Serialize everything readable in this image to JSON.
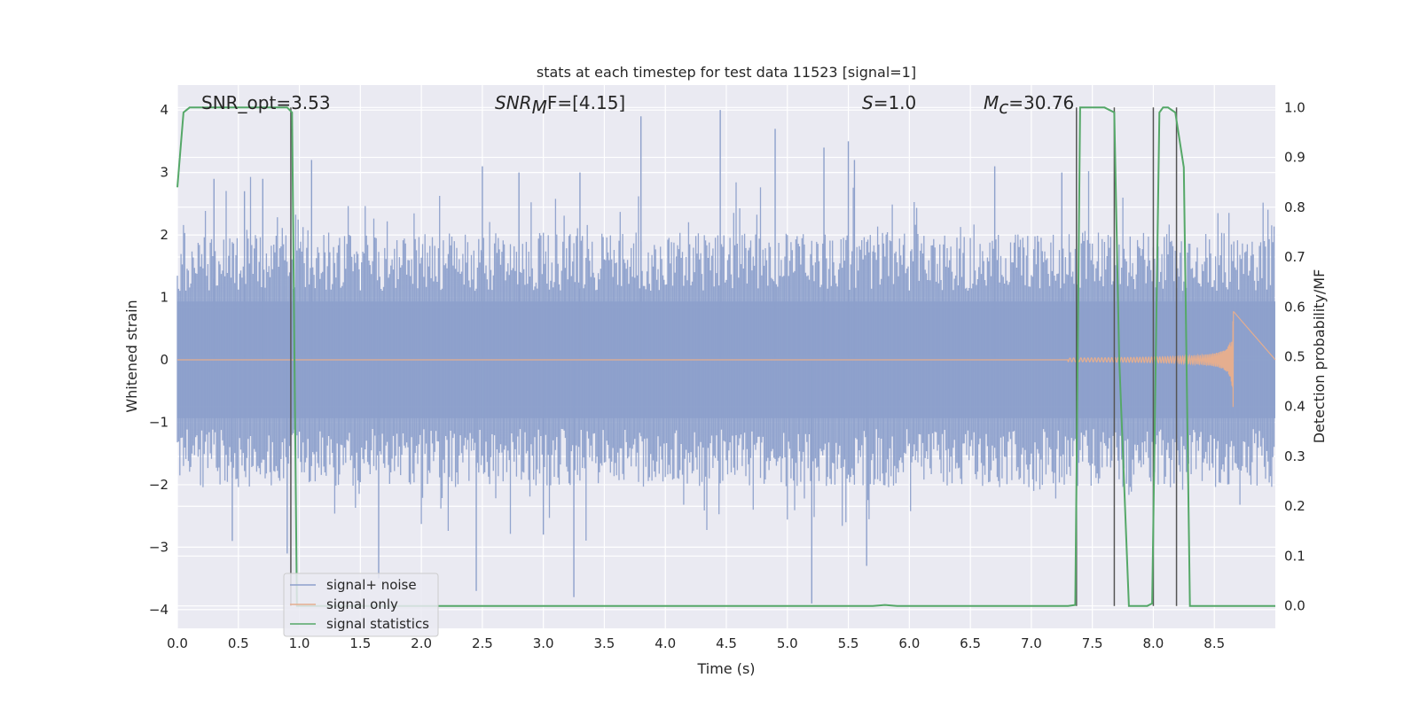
{
  "chart_data": {
    "type": "line",
    "title": "stats at each timestep for test data 11523 [signal=1]",
    "xlabel": "Time (s)",
    "ylabel": "Whitened strain",
    "y2label": "Detection probability/MF",
    "xlim": [
      0.0,
      9.0
    ],
    "ylim": [
      -4.3,
      4.4
    ],
    "y2lim": [
      -0.045,
      1.045
    ],
    "x_ticks": [
      "0.0",
      "0.5",
      "1.0",
      "1.5",
      "2.0",
      "2.5",
      "3.0",
      "3.5",
      "4.0",
      "4.5",
      "5.0",
      "5.5",
      "6.0",
      "6.5",
      "7.0",
      "7.5",
      "8.0",
      "8.5"
    ],
    "y_ticks": [
      "4",
      "3",
      "2",
      "1",
      "0",
      "−1",
      "−2",
      "−3",
      "−4"
    ],
    "y2_ticks": [
      "1.0",
      "0.9",
      "0.8",
      "0.7",
      "0.6",
      "0.5",
      "0.4",
      "0.3",
      "0.2",
      "0.1",
      "0.0"
    ],
    "grid": true,
    "legend_position": "lower-left",
    "annotations": {
      "snr_opt": "SNR_opt=3.53",
      "snr_mf_sym": "SNR",
      "snr_mf_sub": "M",
      "snr_mf_rest": "F=[4.15]",
      "s_sym": "S",
      "s_rest": "=1.0",
      "mc_sym": "M",
      "mc_sub": "c",
      "mc_rest": "=30.76"
    },
    "series": [
      {
        "name": "signal+ noise",
        "color": "#8da0cb",
        "kind": "noise-band",
        "x_range": [
          0.0,
          9.0
        ],
        "typical_abs_max": 1.7,
        "peaks": [
          [
            0.3,
            2.9
          ],
          [
            0.55,
            2.7
          ],
          [
            0.7,
            2.9
          ],
          [
            1.1,
            3.2
          ],
          [
            2.5,
            3.1
          ],
          [
            2.8,
            3.0
          ],
          [
            3.3,
            3.0
          ],
          [
            3.8,
            3.9
          ],
          [
            4.45,
            4.0
          ],
          [
            4.9,
            3.7
          ],
          [
            5.3,
            3.4
          ],
          [
            5.5,
            3.5
          ],
          [
            5.55,
            3.2
          ],
          [
            6.7,
            3.1
          ],
          [
            7.25,
            3.0
          ],
          [
            0.9,
            -3.1
          ],
          [
            1.65,
            -3.5
          ],
          [
            2.45,
            -3.7
          ],
          [
            3.25,
            -3.8
          ],
          [
            5.2,
            -3.9
          ],
          [
            5.65,
            -3.3
          ],
          [
            0.45,
            -2.9
          ],
          [
            3.0,
            -2.8
          ]
        ]
      },
      {
        "name": "signal only",
        "color": "#e5ae8f",
        "kind": "chirp",
        "x_range": [
          7.3,
          8.66
        ],
        "peak_amplitude": 0.8,
        "merger_time": 8.66
      },
      {
        "name": "signal statistics",
        "color": "#55a868",
        "kind": "line",
        "axis": "right",
        "x": [
          0.0,
          0.05,
          0.1,
          0.2,
          0.5,
          0.8,
          0.9,
          0.94,
          0.98,
          1.02,
          1.1,
          2.0,
          3.0,
          4.0,
          5.0,
          5.7,
          5.8,
          5.9,
          6.0,
          6.5,
          7.0,
          7.3,
          7.36,
          7.4,
          7.45,
          7.6,
          7.68,
          7.72,
          7.8,
          7.85,
          7.95,
          7.99,
          8.05,
          8.08,
          8.12,
          8.18,
          8.25,
          8.3,
          8.35,
          8.4,
          8.6,
          8.8,
          9.0
        ],
        "y": [
          0.84,
          0.99,
          1.0,
          1.0,
          1.0,
          1.0,
          1.0,
          0.99,
          0.0,
          0.0,
          0.0,
          0.0,
          0.0,
          0.0,
          0.0,
          0.0,
          0.002,
          0.0,
          0.0,
          0.0,
          0.0,
          0.0,
          0.002,
          1.0,
          1.0,
          1.0,
          0.99,
          0.5,
          0.0,
          0.0,
          0.0,
          0.005,
          0.99,
          1.0,
          1.0,
          0.99,
          0.88,
          0.0,
          0.0,
          0.0,
          0.0,
          0.0,
          0.0
        ]
      }
    ],
    "vertical_markers": [
      0.93,
      7.37,
      7.68,
      8.0,
      8.19
    ]
  }
}
